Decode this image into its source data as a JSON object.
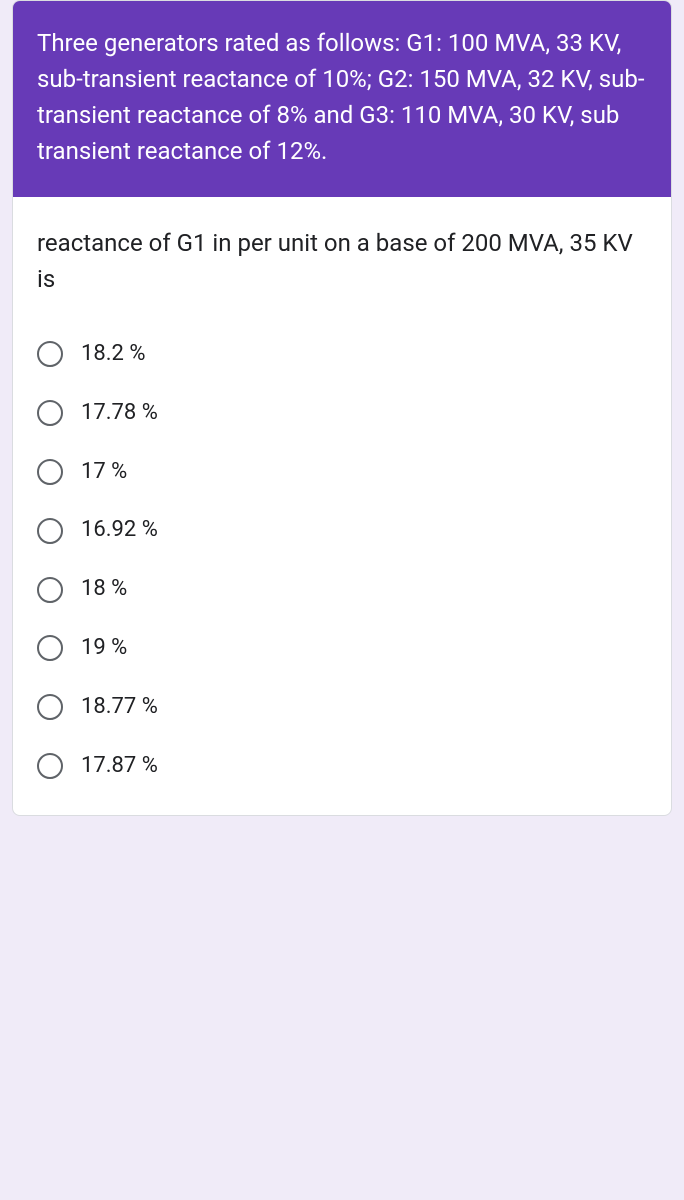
{
  "header": {
    "description": "Three generators rated as follows: G1: 100 MVA, 33 KV, sub-transient reactance of 10%; G2: 150 MVA, 32 KV, sub-transient reactance of 8% and G3: 110 MVA, 30 KV, sub transient reactance of 12%.",
    "background_color": "#673ab7",
    "text_color": "#ffffff",
    "font_size": 24
  },
  "question": {
    "text": "reactance of G1 in per unit on a base of 200 MVA, 35 KV is",
    "text_color": "#202124",
    "font_size": 24
  },
  "options": [
    {
      "label": "18.2 %",
      "selected": false
    },
    {
      "label": "17.78 %",
      "selected": false
    },
    {
      "label": "17 %",
      "selected": false
    },
    {
      "label": "16.92 %",
      "selected": false
    },
    {
      "label": "18 %",
      "selected": false
    },
    {
      "label": "19 %",
      "selected": false
    },
    {
      "label": "18.77 %",
      "selected": false
    },
    {
      "label": "17.87 %",
      "selected": false
    }
  ],
  "styling": {
    "card_background": "#ffffff",
    "card_border": "#dadce0",
    "body_background": "#f0ebf8",
    "radio_border_color": "#5f6368",
    "option_font_size": 22,
    "option_text_color": "#202124"
  }
}
